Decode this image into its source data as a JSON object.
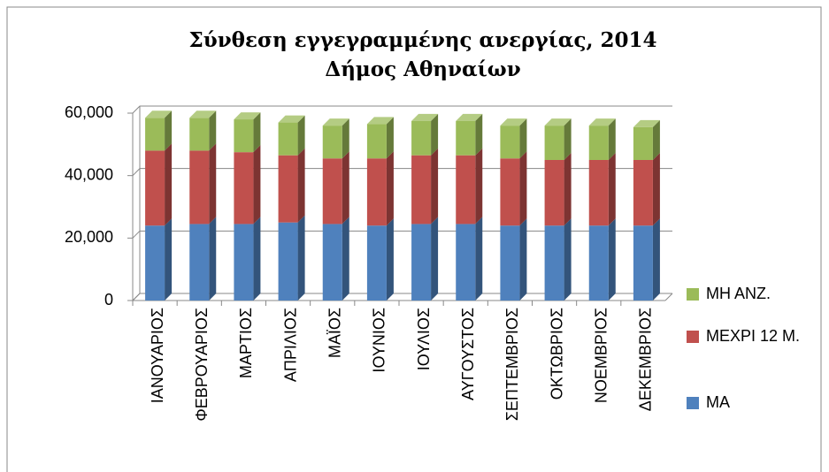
{
  "chart_data": {
    "type": "bar",
    "stacked": true,
    "title": "Σύνθεση εγγεγραμμένης ανεργίας, 2014",
    "subtitle": "Δήμος Αθηναίων",
    "categories": [
      "ΙΑΝΟΥΑΡΙΟΣ",
      "ΦΕΒΡΟΥΑΡΙΟΣ",
      "ΜΑΡΤΙΟΣ",
      "ΑΠΡΙΛΙΟΣ",
      "ΜΑΪΟΣ",
      "ΙΟΥΝΙΟΣ",
      "ΙΟΥΛΙΟΣ",
      "ΑΥΓΟΥΣΤΟΣ",
      "ΣΕΠΤΕΜΒΡΙΟΣ",
      "ΟΚΤΩΒΡΙΟΣ",
      "ΝΟΕΜΒΡΙΟΣ",
      "ΔΕΚΕΜΒΡΙΟΣ"
    ],
    "series": [
      {
        "name": "ΜΑ",
        "color": "#4f81bd",
        "values": [
          24000,
          24500,
          24500,
          25000,
          24500,
          24000,
          24500,
          24500,
          24000,
          24000,
          24000,
          24000
        ]
      },
      {
        "name": "ΜΕΧΡΙ 12 Μ.",
        "color": "#c0504d",
        "values": [
          24000,
          23500,
          23000,
          21500,
          21000,
          21500,
          22000,
          22000,
          21500,
          21000,
          21000,
          21000
        ]
      },
      {
        "name": "ΜΗ ΑΝΖ.",
        "color": "#9bbb59",
        "values": [
          10500,
          10500,
          10500,
          10500,
          10500,
          11000,
          11000,
          11000,
          10500,
          11000,
          11000,
          10500
        ]
      }
    ],
    "ylim": [
      0,
      60000
    ],
    "yticks": [
      0,
      {
        "value": 20000,
        "label": "20,000"
      },
      {
        "value": 40000,
        "label": "40,000"
      },
      {
        "value": 60000,
        "label": "60,000"
      }
    ],
    "grid": true,
    "legend": "right"
  }
}
